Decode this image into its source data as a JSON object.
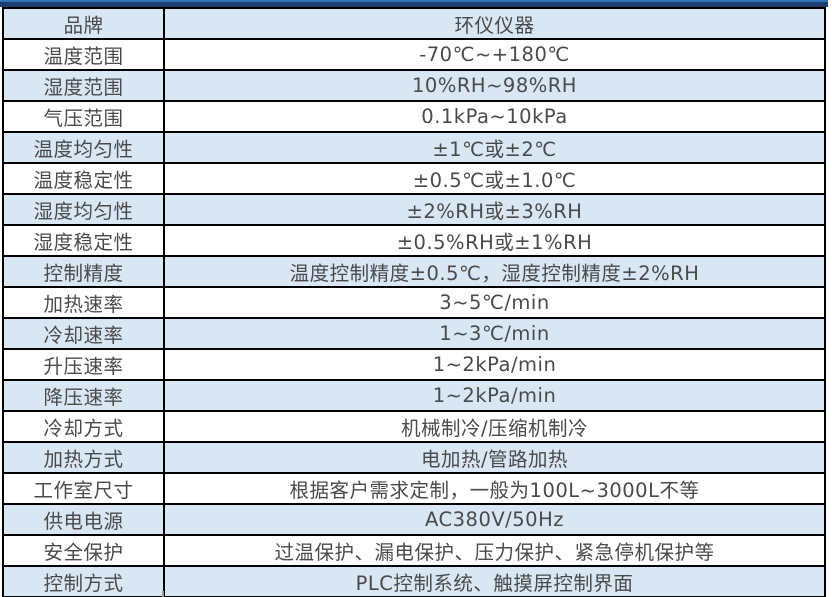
{
  "colors": {
    "band_blue": "#d9e6f4",
    "row_white": "#ffffff",
    "border_black": "#000000",
    "text_gray": "#4a4a4a",
    "top_strip_navy": "#1d3e6e",
    "top_strip_accent_blue": "#2e74b5"
  },
  "table": {
    "rows": [
      {
        "label": "品牌",
        "value": "环仪仪器"
      },
      {
        "label": "温度范围",
        "value": "-70℃~+180℃"
      },
      {
        "label": "湿度范围",
        "value": "10%RH~98%RH"
      },
      {
        "label": "气压范围",
        "value": "0.1kPa~10kPa"
      },
      {
        "label": "温度均匀性",
        "value": "±1℃或±2℃"
      },
      {
        "label": "温度稳定性",
        "value": "±0.5℃或±1.0℃"
      },
      {
        "label": "湿度均匀性",
        "value": "±2%RH或±3%RH"
      },
      {
        "label": "湿度稳定性",
        "value": "±0.5%RH或±1%RH"
      },
      {
        "label": "控制精度",
        "value": "温度控制精度±0.5℃，湿度控制精度±2%RH"
      },
      {
        "label": "加热速率",
        "value": "3~5℃/min"
      },
      {
        "label": "冷却速率",
        "value": "1~3℃/min"
      },
      {
        "label": "升压速率",
        "value": "1~2kPa/min"
      },
      {
        "label": "降压速率",
        "value": "1~2kPa/min"
      },
      {
        "label": "冷却方式",
        "value": "机械制冷/压缩机制冷"
      },
      {
        "label": "加热方式",
        "value": "电加热/管路加热"
      },
      {
        "label": "工作室尺寸",
        "value": "根据客户需求定制，一般为100L~3000L不等"
      },
      {
        "label": "供电电源",
        "value": "AC380V/50Hz"
      },
      {
        "label": "安全保护",
        "value": "过温保护、漏电保护、压力保护、紧急停机保护等"
      },
      {
        "label": "控制方式",
        "value": "PLC控制系统、触摸屏控制界面"
      }
    ]
  }
}
